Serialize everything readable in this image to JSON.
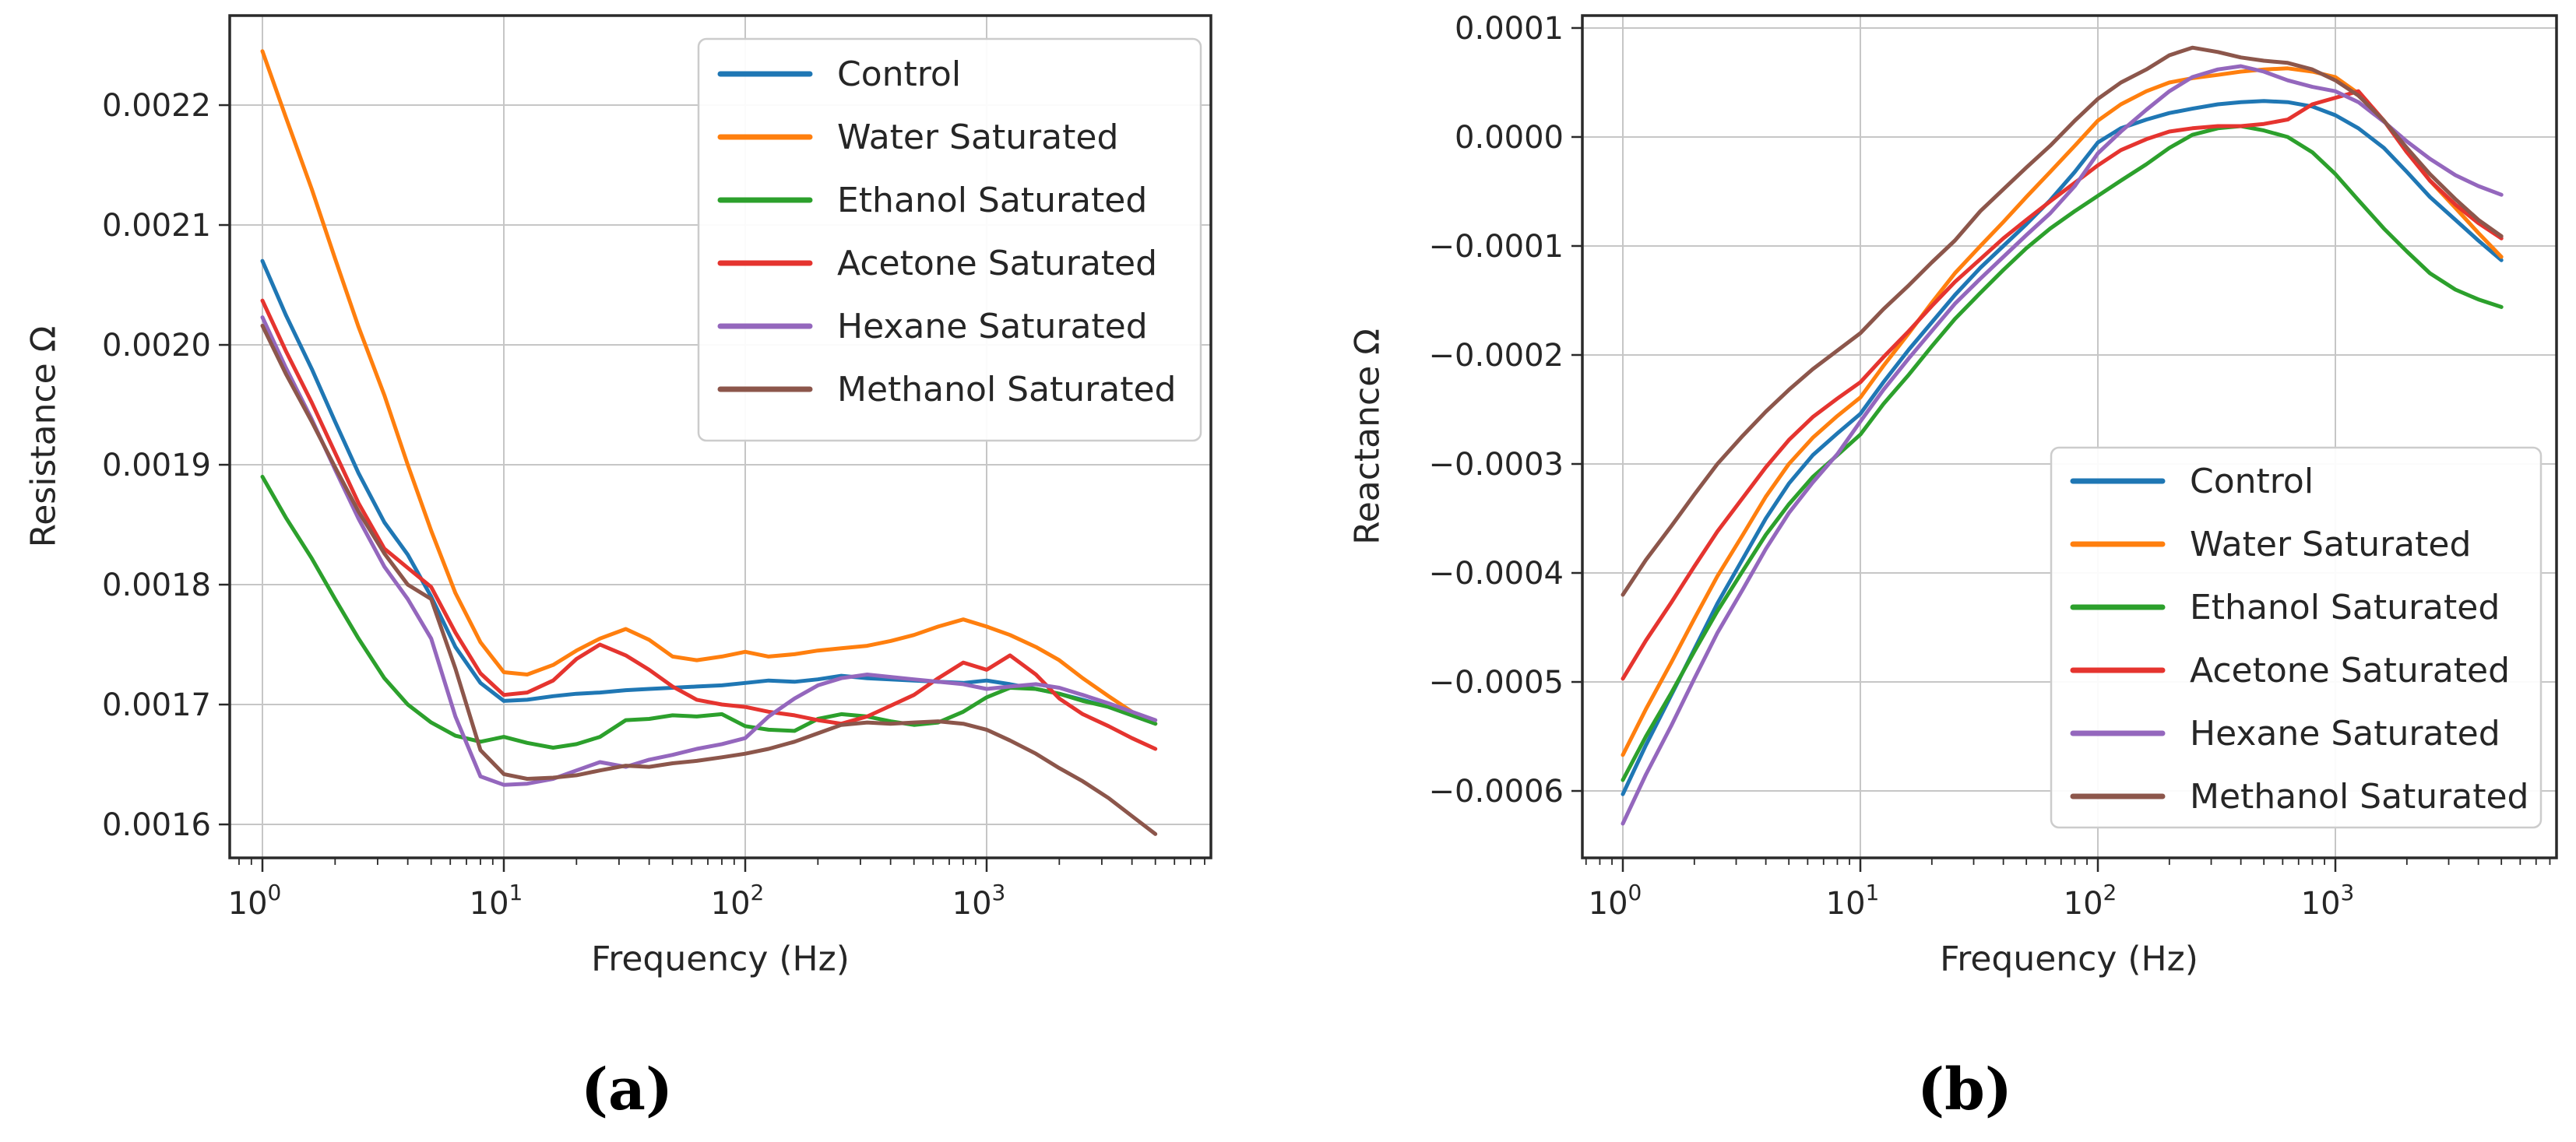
{
  "figure": {
    "background": "#ffffff"
  },
  "chart_data": [
    {
      "type": "line",
      "panel": "a",
      "caption": "(a)",
      "xlabel": "Frequency (Hz)",
      "ylabel": "Resistance Ω",
      "x_scale": "log",
      "grid": true,
      "legend_position": "upper right",
      "xlim_log": [
        -0.135,
        3.93
      ],
      "ylim": [
        0.0015721,
        0.0022747
      ],
      "xtick_exponents": [
        0,
        1,
        2,
        3
      ],
      "ytick_values": [
        0.0022,
        0.0021,
        0.002,
        0.0019,
        0.0018,
        0.0017,
        0.0016
      ],
      "ytick_labels": [
        "0.0022",
        "0.0021",
        "0.0020",
        "0.0019",
        "0.0018",
        "0.0017",
        "0.0016"
      ],
      "x": [
        1,
        1.25,
        1.6,
        2,
        2.5,
        3.2,
        4,
        5,
        6.3,
        8,
        10,
        12.5,
        16,
        20,
        25,
        32,
        40,
        50,
        63,
        80,
        100,
        125,
        160,
        200,
        250,
        320,
        400,
        500,
        630,
        800,
        1000,
        1250,
        1600,
        2000,
        2500,
        3200,
        4000,
        5000
      ],
      "series": [
        {
          "name": "Control",
          "color": "#1f77b4",
          "values": [
            0.00207,
            0.002025,
            0.00198,
            0.001936,
            0.001893,
            0.001852,
            0.001825,
            0.00179,
            0.001748,
            0.001718,
            0.001703,
            0.001704,
            0.001707,
            0.001709,
            0.00171,
            0.001712,
            0.001713,
            0.001714,
            0.001715,
            0.001716,
            0.001718,
            0.00172,
            0.001719,
            0.001721,
            0.001724,
            0.001722,
            0.001721,
            0.00172,
            0.001719,
            0.001718,
            0.00172,
            0.001717,
            0.001713,
            0.001709,
            0.001704,
            0.001698,
            0.001691,
            0.001684
          ]
        },
        {
          "name": "Water Saturated",
          "color": "#ff7f0e",
          "values": [
            0.002245,
            0.00219,
            0.00213,
            0.002072,
            0.002015,
            0.001958,
            0.0019,
            0.001845,
            0.001793,
            0.001752,
            0.001727,
            0.001725,
            0.001733,
            0.001745,
            0.001755,
            0.001763,
            0.001754,
            0.00174,
            0.001737,
            0.00174,
            0.001744,
            0.00174,
            0.001742,
            0.001745,
            0.001747,
            0.001749,
            0.001753,
            0.001758,
            0.001765,
            0.001771,
            0.001765,
            0.001758,
            0.001748,
            0.001737,
            0.001722,
            0.001707,
            0.001694,
            0.001684
          ]
        },
        {
          "name": "Ethanol Saturated",
          "color": "#2ca02c",
          "values": [
            0.00189,
            0.001856,
            0.001822,
            0.001788,
            0.001755,
            0.001722,
            0.0017,
            0.001685,
            0.001674,
            0.001669,
            0.001673,
            0.001668,
            0.001664,
            0.001667,
            0.001673,
            0.001687,
            0.001688,
            0.001691,
            0.00169,
            0.001692,
            0.001682,
            0.001679,
            0.001678,
            0.001688,
            0.001692,
            0.00169,
            0.001686,
            0.001683,
            0.001685,
            0.001694,
            0.001706,
            0.001714,
            0.001713,
            0.001709,
            0.001703,
            0.001698,
            0.001691,
            0.001684
          ]
        },
        {
          "name": "Acetone Saturated",
          "color": "#e5342f",
          "values": [
            0.002037,
            0.001995,
            0.001952,
            0.00191,
            0.001868,
            0.00183,
            0.001814,
            0.001798,
            0.00176,
            0.001726,
            0.001708,
            0.00171,
            0.00172,
            0.001738,
            0.00175,
            0.001741,
            0.001729,
            0.001715,
            0.001704,
            0.0017,
            0.001698,
            0.001694,
            0.001691,
            0.001687,
            0.001684,
            0.00169,
            0.001699,
            0.001708,
            0.001722,
            0.001735,
            0.001729,
            0.001741,
            0.001725,
            0.001705,
            0.001692,
            0.001682,
            0.001672,
            0.001663
          ]
        },
        {
          "name": "Hexane Saturated",
          "color": "#9467bd",
          "values": [
            0.002023,
            0.001981,
            0.001938,
            0.001896,
            0.001855,
            0.001815,
            0.001788,
            0.001755,
            0.00169,
            0.00164,
            0.001633,
            0.001634,
            0.001638,
            0.001645,
            0.001652,
            0.001648,
            0.001654,
            0.001658,
            0.001663,
            0.001667,
            0.001672,
            0.00169,
            0.001705,
            0.001716,
            0.001722,
            0.001725,
            0.001723,
            0.001721,
            0.001719,
            0.001717,
            0.001713,
            0.001715,
            0.001717,
            0.001714,
            0.001708,
            0.001701,
            0.001694,
            0.001687
          ]
        },
        {
          "name": "Methanol Saturated",
          "color": "#8c564b",
          "values": [
            0.002016,
            0.001976,
            0.001936,
            0.001898,
            0.001861,
            0.001826,
            0.0018,
            0.001788,
            0.00173,
            0.001662,
            0.001642,
            0.001638,
            0.001639,
            0.001641,
            0.001645,
            0.001649,
            0.001648,
            0.001651,
            0.001653,
            0.001656,
            0.001659,
            0.001663,
            0.001669,
            0.001676,
            0.001683,
            0.001685,
            0.001684,
            0.001685,
            0.001686,
            0.001684,
            0.001679,
            0.00167,
            0.001659,
            0.001647,
            0.001636,
            0.001622,
            0.001607,
            0.001592
          ]
        }
      ]
    },
    {
      "type": "line",
      "panel": "b",
      "caption": "(b)",
      "xlabel": "Frequency (Hz)",
      "ylabel": "Reactance Ω",
      "x_scale": "log",
      "grid": true,
      "legend_position": "lower right",
      "xlim_log": [
        -0.17,
        3.93
      ],
      "ylim": [
        -0.0006614,
        0.0001114
      ],
      "xtick_exponents": [
        0,
        1,
        2,
        3
      ],
      "ytick_values": [
        0.0001,
        0.0,
        -0.0001,
        -0.0002,
        -0.0003,
        -0.0004,
        -0.0005,
        -0.0006
      ],
      "ytick_labels": [
        "0.0001",
        "0.0000",
        "−0.0001",
        "−0.0002",
        "−0.0003",
        "−0.0004",
        "−0.0005",
        "−0.0006"
      ],
      "x": [
        1,
        1.25,
        1.6,
        2,
        2.5,
        3.2,
        4,
        5,
        6.3,
        8,
        10,
        12.5,
        16,
        20,
        25,
        32,
        40,
        50,
        63,
        80,
        100,
        125,
        160,
        200,
        250,
        320,
        400,
        500,
        630,
        800,
        1000,
        1250,
        1600,
        2000,
        2500,
        3200,
        4000,
        5000
      ],
      "series": [
        {
          "name": "Control",
          "color": "#1f77b4",
          "values": [
            -0.000603,
            -0.000558,
            -0.000512,
            -0.00047,
            -0.000428,
            -0.000387,
            -0.00035,
            -0.000318,
            -0.000292,
            -0.000272,
            -0.000254,
            -0.000225,
            -0.000195,
            -0.00017,
            -0.000145,
            -0.00012,
            -0.0001,
            -8e-05,
            -5.8e-05,
            -3.2e-05,
            -5e-06,
            8e-06,
            1.6e-05,
            2.2e-05,
            2.6e-05,
            3e-05,
            3.2e-05,
            3.3e-05,
            3.2e-05,
            2.8e-05,
            2e-05,
            8e-06,
            -1e-05,
            -3.2e-05,
            -5.5e-05,
            -7.6e-05,
            -9.5e-05,
            -0.000113
          ]
        },
        {
          "name": "Water Saturated",
          "color": "#ff7f0e",
          "values": [
            -0.000567,
            -0.000525,
            -0.000482,
            -0.000442,
            -0.000403,
            -0.000365,
            -0.00033,
            -0.0003,
            -0.000276,
            -0.000256,
            -0.000239,
            -0.00021,
            -0.00018,
            -0.000152,
            -0.000125,
            -0.0001,
            -7.8e-05,
            -5.5e-05,
            -3.2e-05,
            -8e-06,
            1.5e-05,
            3e-05,
            4.2e-05,
            5e-05,
            5.4e-05,
            5.7e-05,
            6e-05,
            6.2e-05,
            6.3e-05,
            6e-05,
            5.5e-05,
            4e-05,
            1.5e-05,
            -1.2e-05,
            -4e-05,
            -6.5e-05,
            -8.8e-05,
            -0.00011
          ]
        },
        {
          "name": "Ethanol Saturated",
          "color": "#2ca02c",
          "values": [
            -0.00059,
            -0.00055,
            -0.00051,
            -0.000472,
            -0.000435,
            -0.000398,
            -0.000365,
            -0.000337,
            -0.000312,
            -0.000292,
            -0.000273,
            -0.000245,
            -0.000218,
            -0.000192,
            -0.000167,
            -0.000143,
            -0.000122,
            -0.000102,
            -8.4e-05,
            -6.8e-05,
            -5.4e-05,
            -4e-05,
            -2.5e-05,
            -1e-05,
            2e-06,
            8e-06,
            1e-05,
            6e-06,
            0.0,
            -1.4e-05,
            -3.4e-05,
            -5.8e-05,
            -8.4e-05,
            -0.000105,
            -0.000125,
            -0.00014,
            -0.000149,
            -0.000156
          ]
        },
        {
          "name": "Acetone Saturated",
          "color": "#e5342f",
          "values": [
            -0.000497,
            -0.000462,
            -0.000427,
            -0.000394,
            -0.000362,
            -0.000331,
            -0.000303,
            -0.000278,
            -0.000257,
            -0.00024,
            -0.000225,
            -0.000202,
            -0.000178,
            -0.000155,
            -0.000133,
            -0.000112,
            -9.3e-05,
            -7.6e-05,
            -5.9e-05,
            -4.2e-05,
            -2.6e-05,
            -1.2e-05,
            -2e-06,
            5e-06,
            8e-06,
            1e-05,
            1e-05,
            1.2e-05,
            1.6e-05,
            3e-05,
            3.6e-05,
            4.2e-05,
            1.5e-05,
            -1.4e-05,
            -4e-05,
            -6.2e-05,
            -7.9e-05,
            -9.3e-05
          ]
        },
        {
          "name": "Hexane Saturated",
          "color": "#9467bd",
          "values": [
            -0.00063,
            -0.000585,
            -0.00054,
            -0.000497,
            -0.000455,
            -0.000415,
            -0.000378,
            -0.000345,
            -0.000317,
            -0.000291,
            -0.000261,
            -0.000232,
            -0.000203,
            -0.000178,
            -0.000153,
            -0.00013,
            -0.00011,
            -9e-05,
            -7e-05,
            -4.5e-05,
            -1.5e-05,
            5e-06,
            2.5e-05,
            4.2e-05,
            5.5e-05,
            6.2e-05,
            6.5e-05,
            6e-05,
            5.2e-05,
            4.6e-05,
            4.2e-05,
            3.2e-05,
            1.4e-05,
            -4e-06,
            -2e-05,
            -3.5e-05,
            -4.5e-05,
            -5.3e-05
          ]
        },
        {
          "name": "Methanol Saturated",
          "color": "#8c564b",
          "values": [
            -0.00042,
            -0.000388,
            -0.000357,
            -0.000328,
            -0.0003,
            -0.000274,
            -0.000252,
            -0.000232,
            -0.000213,
            -0.000196,
            -0.00018,
            -0.000158,
            -0.000136,
            -0.000115,
            -9.5e-05,
            -6.8e-05,
            -4.8e-05,
            -2.8e-05,
            -8e-06,
            1.5e-05,
            3.5e-05,
            5e-05,
            6.2e-05,
            7.5e-05,
            8.2e-05,
            7.8e-05,
            7.3e-05,
            7e-05,
            6.8e-05,
            6.2e-05,
            5.2e-05,
            3.8e-05,
            1.5e-05,
            -1e-05,
            -3.4e-05,
            -5.7e-05,
            -7.6e-05,
            -9.1e-05
          ]
        }
      ]
    }
  ]
}
